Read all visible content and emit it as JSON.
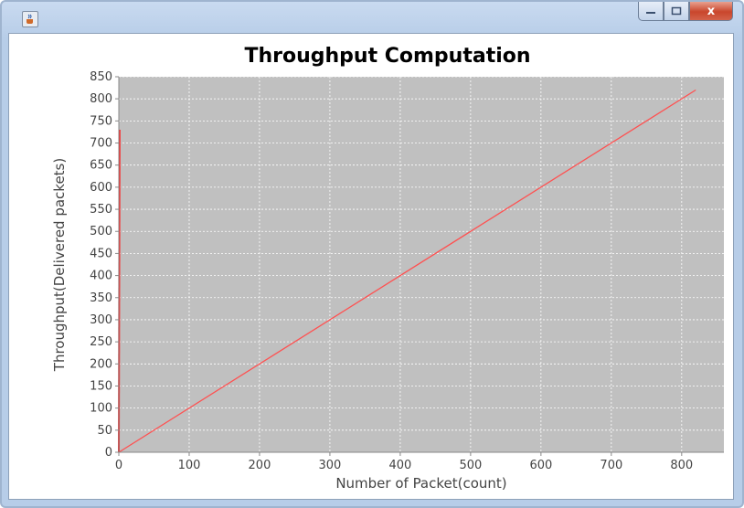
{
  "window": {
    "close_glyph": "x",
    "icon": "java-cup-icon"
  },
  "chart_data": {
    "type": "line",
    "title": "Throughput Computation",
    "xlabel": "Number of Packet(count)",
    "ylabel": "Throughput(Delivered packets)",
    "xlim": [
      0,
      860
    ],
    "ylim": [
      0,
      850
    ],
    "xticks": [
      0,
      100,
      200,
      300,
      400,
      500,
      600,
      700,
      800
    ],
    "yticks": [
      0,
      50,
      100,
      150,
      200,
      250,
      300,
      350,
      400,
      450,
      500,
      550,
      600,
      650,
      700,
      750,
      800,
      850
    ],
    "grid": true,
    "plot_background": "#c0c0c0",
    "series": [
      {
        "color": "#ff5050",
        "x": [
          0,
          820
        ],
        "y": [
          0,
          820
        ]
      },
      {
        "color": "#ff2020",
        "x": [
          0,
          1
        ],
        "y": [
          0,
          730
        ]
      }
    ]
  }
}
